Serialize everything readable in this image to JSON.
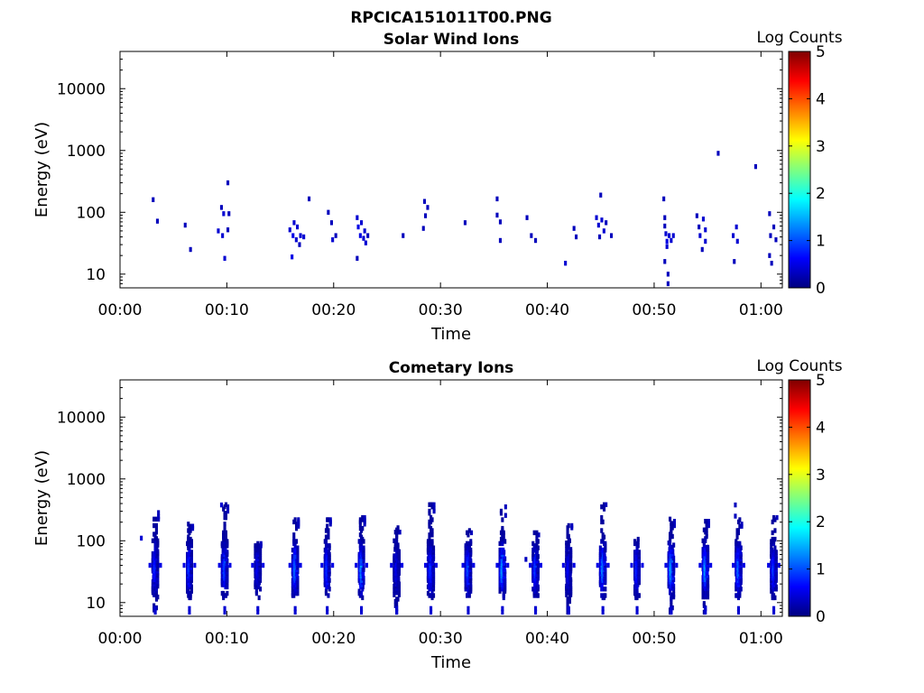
{
  "figure_title": "RPCICA151011T00.PNG",
  "colors": {
    "axis": "#000000",
    "colormap": [
      "#00007f",
      "#0000ff",
      "#007fff",
      "#00ffff",
      "#7fff7f",
      "#ffff00",
      "#ff7f00",
      "#ff0000",
      "#7f0000"
    ]
  },
  "chart_data": [
    {
      "type": "heatmap",
      "title": "Solar Wind Ions",
      "xlabel": "Time",
      "ylabel": "Energy (eV)",
      "colorbar_label": "Log Counts",
      "x_unit": "minutes",
      "xlim": [
        0,
        62
      ],
      "ylim": [
        6,
        40000
      ],
      "yscale": "log",
      "x_ticks": [
        "00:00",
        "00:10",
        "00:20",
        "00:30",
        "00:40",
        "00:50",
        "01:00"
      ],
      "y_ticks": [
        "10",
        "100",
        "1000",
        "10000"
      ],
      "clim": [
        0,
        5
      ],
      "colorbar_ticks": [
        "0",
        "1",
        "2",
        "3",
        "4",
        "5"
      ],
      "grid": false,
      "cells": [
        [
          3.1,
          160,
          0.3
        ],
        [
          3.5,
          72,
          0.3
        ],
        [
          6.1,
          62,
          0.3
        ],
        [
          6.6,
          25,
          0.3
        ],
        [
          9.2,
          50,
          0.4
        ],
        [
          9.5,
          120,
          0.3
        ],
        [
          9.7,
          95,
          0.4
        ],
        [
          9.6,
          42,
          0.4
        ],
        [
          9.8,
          18,
          0.4
        ],
        [
          10.1,
          300,
          0.3
        ],
        [
          10.1,
          52,
          0.3
        ],
        [
          10.2,
          95,
          0.3
        ],
        [
          15.9,
          52,
          0.4
        ],
        [
          16.2,
          42,
          0.5
        ],
        [
          16.3,
          68,
          0.4
        ],
        [
          16.5,
          36,
          0.4
        ],
        [
          16.6,
          58,
          0.4
        ],
        [
          16.1,
          19,
          0.5
        ],
        [
          16.9,
          42,
          0.4
        ],
        [
          17.2,
          40,
          0.4
        ],
        [
          16.8,
          30,
          0.3
        ],
        [
          17.7,
          165,
          0.3
        ],
        [
          19.5,
          100,
          0.3
        ],
        [
          19.8,
          68,
          0.3
        ],
        [
          19.9,
          36,
          0.4
        ],
        [
          20.2,
          42,
          0.3
        ],
        [
          22.2,
          82,
          0.4
        ],
        [
          22.3,
          58,
          0.5
        ],
        [
          22.5,
          42,
          0.5
        ],
        [
          22.6,
          68,
          0.4
        ],
        [
          22.8,
          38,
          0.4
        ],
        [
          22.9,
          50,
          0.4
        ],
        [
          23.0,
          32,
          0.4
        ],
        [
          22.2,
          18,
          0.3
        ],
        [
          23.2,
          42,
          0.3
        ],
        [
          26.5,
          42,
          0.3
        ],
        [
          28.5,
          150,
          0.3
        ],
        [
          28.8,
          120,
          0.3
        ],
        [
          28.6,
          88,
          0.3
        ],
        [
          28.4,
          55,
          0.3
        ],
        [
          32.3,
          68,
          0.3
        ],
        [
          35.3,
          165,
          0.3
        ],
        [
          35.3,
          90,
          0.3
        ],
        [
          35.6,
          70,
          0.3
        ],
        [
          35.6,
          35,
          0.3
        ],
        [
          38.1,
          82,
          0.3
        ],
        [
          38.5,
          42,
          0.3
        ],
        [
          38.9,
          35,
          0.3
        ],
        [
          41.7,
          15,
          0.4
        ],
        [
          42.5,
          55,
          0.3
        ],
        [
          42.7,
          40,
          0.3
        ],
        [
          44.6,
          82,
          0.4
        ],
        [
          44.8,
          62,
          0.4
        ],
        [
          45.0,
          190,
          0.3
        ],
        [
          45.1,
          75,
          0.4
        ],
        [
          45.3,
          50,
          0.4
        ],
        [
          45.5,
          68,
          0.3
        ],
        [
          44.9,
          40,
          0.3
        ],
        [
          46.0,
          42,
          0.3
        ],
        [
          50.9,
          165,
          0.3
        ],
        [
          51.0,
          82,
          0.3
        ],
        [
          51.0,
          60,
          0.3
        ],
        [
          51.1,
          45,
          0.4
        ],
        [
          51.2,
          34,
          0.5
        ],
        [
          51.4,
          42,
          0.4
        ],
        [
          51.6,
          35,
          0.4
        ],
        [
          51.8,
          42,
          0.4
        ],
        [
          51.2,
          28,
          0.4
        ],
        [
          51.0,
          16,
          0.3
        ],
        [
          51.3,
          10,
          0.3
        ],
        [
          51.3,
          7,
          0.3
        ],
        [
          54.0,
          88,
          0.3
        ],
        [
          54.2,
          58,
          0.3
        ],
        [
          54.3,
          42,
          0.4
        ],
        [
          54.6,
          78,
          0.4
        ],
        [
          54.8,
          52,
          0.4
        ],
        [
          54.8,
          34,
          0.4
        ],
        [
          54.5,
          25,
          0.3
        ],
        [
          56.0,
          900,
          0.3
        ],
        [
          57.4,
          42,
          0.4
        ],
        [
          57.7,
          58,
          0.4
        ],
        [
          57.8,
          34,
          0.4
        ],
        [
          57.5,
          16,
          0.3
        ],
        [
          59.5,
          550,
          0.3
        ],
        [
          60.8,
          95,
          0.3
        ],
        [
          60.9,
          42,
          0.3
        ],
        [
          61.2,
          58,
          0.3
        ],
        [
          61.4,
          36,
          0.3
        ],
        [
          60.8,
          20,
          0.3
        ],
        [
          61.0,
          15,
          0.3
        ]
      ]
    },
    {
      "type": "heatmap",
      "title": "Cometary Ions",
      "xlabel": "Time",
      "ylabel": "Energy (eV)",
      "colorbar_label": "Log Counts",
      "x_unit": "minutes",
      "xlim": [
        0,
        62
      ],
      "ylim": [
        6,
        40000
      ],
      "yscale": "log",
      "x_ticks": [
        "00:00",
        "00:10",
        "00:20",
        "00:30",
        "00:40",
        "00:50",
        "01:00"
      ],
      "y_ticks": [
        "10",
        "100",
        "1000",
        "10000"
      ],
      "clim": [
        0,
        5
      ],
      "colorbar_ticks": [
        "0",
        "1",
        "2",
        "3",
        "4",
        "5"
      ],
      "grid": false,
      "bursts": [
        [
          3.3,
          300,
          7,
          0.9,
          0.8
        ],
        [
          6.5,
          200,
          12,
          0.8,
          0.9
        ],
        [
          9.8,
          400,
          12,
          0.9,
          1.0
        ],
        [
          12.9,
          90,
          12,
          0.9,
          0.5
        ],
        [
          16.4,
          220,
          12,
          0.9,
          1.2
        ],
        [
          19.4,
          250,
          12,
          0.8,
          0.9
        ],
        [
          22.6,
          250,
          12,
          0.8,
          1.3
        ],
        [
          25.9,
          170,
          7,
          0.9,
          0.5
        ],
        [
          29.1,
          400,
          12,
          1.0,
          0.9
        ],
        [
          32.6,
          150,
          12,
          0.9,
          1.0
        ],
        [
          35.8,
          360,
          12,
          0.9,
          1.4
        ],
        [
          38.9,
          140,
          12,
          0.9,
          0.9
        ],
        [
          42.0,
          200,
          7,
          0.8,
          0.6
        ],
        [
          45.2,
          450,
          12,
          0.9,
          1.3
        ],
        [
          48.4,
          140,
          12,
          0.8,
          0.8
        ],
        [
          51.6,
          240,
          7,
          0.9,
          1.5
        ],
        [
          54.8,
          220,
          7,
          0.9,
          1.4
        ],
        [
          57.9,
          220,
          12,
          0.9,
          1.2
        ],
        [
          61.2,
          240,
          12,
          0.9,
          0.9
        ]
      ],
      "cells": [
        [
          2.0,
          110,
          0.4
        ],
        [
          9.5,
          380,
          0.4
        ],
        [
          57.6,
          380,
          0.3
        ],
        [
          57.6,
          250,
          0.3
        ],
        [
          38.0,
          50,
          0.3
        ]
      ]
    }
  ]
}
